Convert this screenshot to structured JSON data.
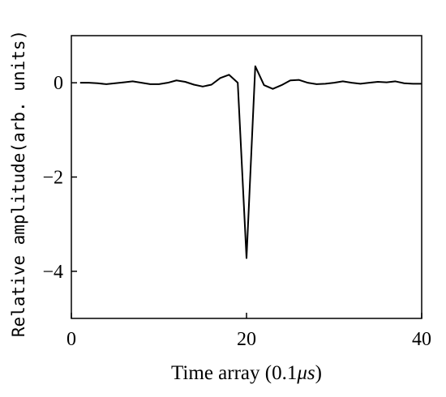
{
  "chart_data": {
    "type": "line",
    "title": "",
    "xlabel": "Time array (0.1",
    "xlabel_unit": "μs",
    "xlabel_close": ")",
    "ylabel": "Relative amplitude(arb. units)",
    "xlim": [
      0,
      40
    ],
    "ylim": [
      -5,
      1
    ],
    "xticks": [
      0,
      20,
      40
    ],
    "xtick_labels": [
      "0",
      "20",
      "40"
    ],
    "yticks": [
      0,
      -2,
      -4
    ],
    "ytick_labels": [
      "0",
      "−2",
      "−4"
    ],
    "grid": false,
    "legend": "none",
    "line_color": "#000000",
    "series": [
      {
        "x": [
          1,
          2,
          3,
          4,
          5,
          6,
          7,
          8,
          9,
          10,
          11,
          12,
          13,
          14,
          15,
          16,
          17,
          18,
          19,
          20,
          21,
          22,
          23,
          24,
          25,
          26,
          27,
          28,
          29,
          30,
          31,
          32,
          33,
          34,
          35,
          36,
          37,
          38,
          39,
          40
        ],
        "y": [
          0.0,
          0.0,
          -0.01,
          -0.03,
          -0.01,
          0.01,
          0.03,
          0.0,
          -0.03,
          -0.03,
          0.0,
          0.05,
          0.02,
          -0.04,
          -0.08,
          -0.04,
          0.1,
          0.17,
          0.0,
          -3.72,
          0.35,
          -0.05,
          -0.13,
          -0.05,
          0.05,
          0.06,
          0.0,
          -0.03,
          -0.02,
          0.0,
          0.03,
          0.0,
          -0.02,
          0.0,
          0.02,
          0.01,
          0.03,
          -0.01,
          -0.02,
          -0.02
        ]
      }
    ]
  }
}
